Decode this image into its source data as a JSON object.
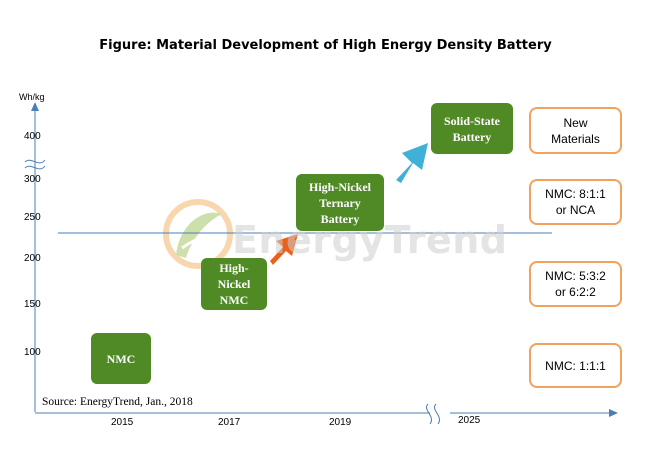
{
  "figure": {
    "title": "Figure: Material Development of High Energy Density Battery",
    "y_unit": "Wh/kg",
    "y_ticks": [
      "400",
      "300",
      "250",
      "200",
      "150",
      "100"
    ],
    "x_ticks": [
      "2015",
      "2017",
      "2019",
      "2025"
    ],
    "source": "Source: EnergyTrend, Jan., 2018",
    "watermark": "EnergyTrend",
    "stages": [
      {
        "label": "NMC"
      },
      {
        "label": "High-\nNickel\nNMC"
      },
      {
        "label": "High-Nickel\nTernary\nBattery"
      },
      {
        "label": "Solid-State\nBattery"
      }
    ],
    "materials": [
      {
        "label": "New\nMaterials"
      },
      {
        "label": "NMC: 8:1:1\nor NCA"
      },
      {
        "label": "NMC: 5:3:2\nor 6:2:2"
      },
      {
        "label": "NMC: 1:1:1"
      }
    ]
  },
  "colors": {
    "stage_green": "#4f8a25",
    "material_border": "#f0a25e",
    "axis_blue": "#4a7fb5",
    "arrow_orange": "#e8621c",
    "arrow_cyan": "#3fb0d6",
    "watermark_orange": "#f3b15f",
    "watermark_green": "#9cc05a"
  }
}
